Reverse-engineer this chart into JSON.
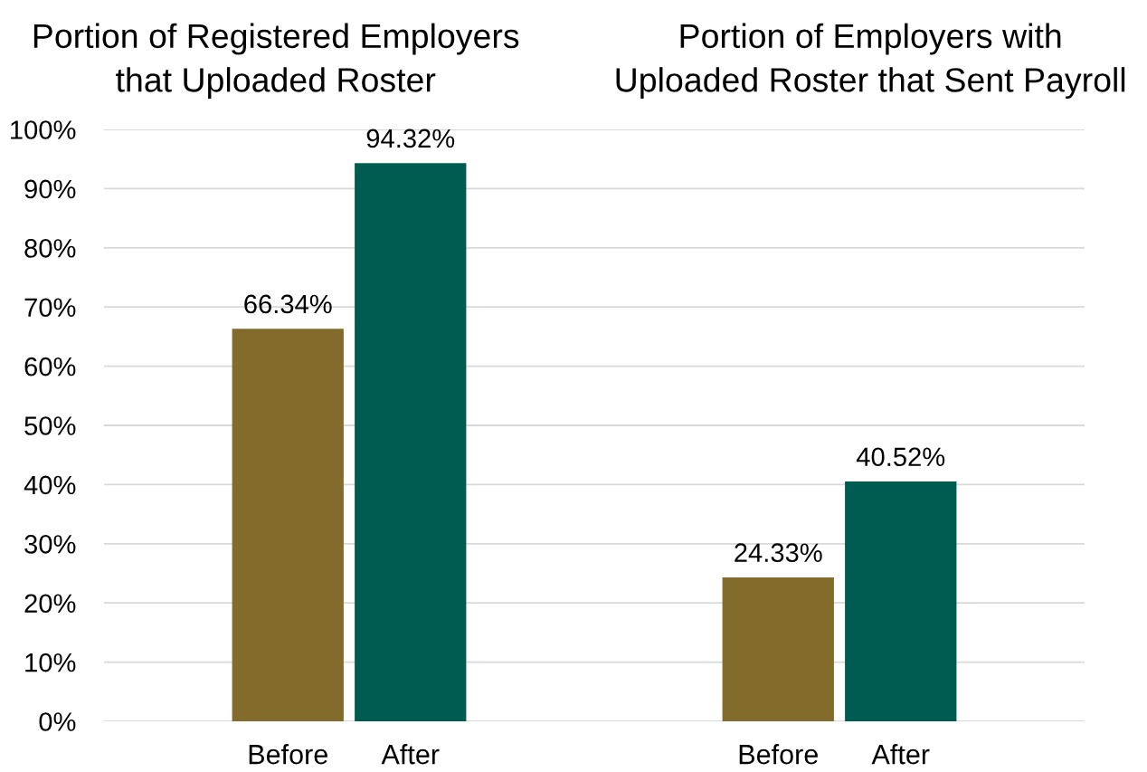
{
  "chart_data": [
    {
      "type": "bar",
      "title": "Portion of Registered Employers\nthat Uploaded Roster",
      "categories": [
        "Before",
        "After"
      ],
      "values": [
        66.34,
        94.32
      ],
      "colors": [
        "#836c2b",
        "#005c50"
      ],
      "value_labels": [
        "66.34%",
        "94.32%"
      ],
      "ylim": [
        0,
        100
      ],
      "yticks": [
        {
          "value": 0,
          "label": "0%"
        },
        {
          "value": 10,
          "label": "10%"
        },
        {
          "value": 20,
          "label": "20%"
        },
        {
          "value": 30,
          "label": "30%"
        },
        {
          "value": 40,
          "label": "40%"
        },
        {
          "value": 50,
          "label": "50%"
        },
        {
          "value": 60,
          "label": "60%"
        },
        {
          "value": 70,
          "label": "70%"
        },
        {
          "value": 80,
          "label": "80%"
        },
        {
          "value": 90,
          "label": "90%"
        },
        {
          "value": 100,
          "label": "100%"
        }
      ],
      "grid": "y"
    },
    {
      "type": "bar",
      "title": "Portion of Employers with\nUploaded Roster that Sent Payroll",
      "categories": [
        "Before",
        "After"
      ],
      "values": [
        24.33,
        40.52
      ],
      "colors": [
        "#836c2b",
        "#005c50"
      ],
      "value_labels": [
        "24.33%",
        "40.52%"
      ],
      "ylim": [
        0,
        100
      ],
      "yticks": [
        {
          "value": 0,
          "label": null
        },
        {
          "value": 10,
          "label": null
        },
        {
          "value": 20,
          "label": null
        },
        {
          "value": 30,
          "label": null
        },
        {
          "value": 40,
          "label": null
        },
        {
          "value": 50,
          "label": null
        },
        {
          "value": 60,
          "label": null
        },
        {
          "value": 70,
          "label": null
        },
        {
          "value": 80,
          "label": null
        },
        {
          "value": 90,
          "label": null
        },
        {
          "value": 100,
          "label": null
        }
      ],
      "grid": "y",
      "tick_labels": "x"
    }
  ]
}
